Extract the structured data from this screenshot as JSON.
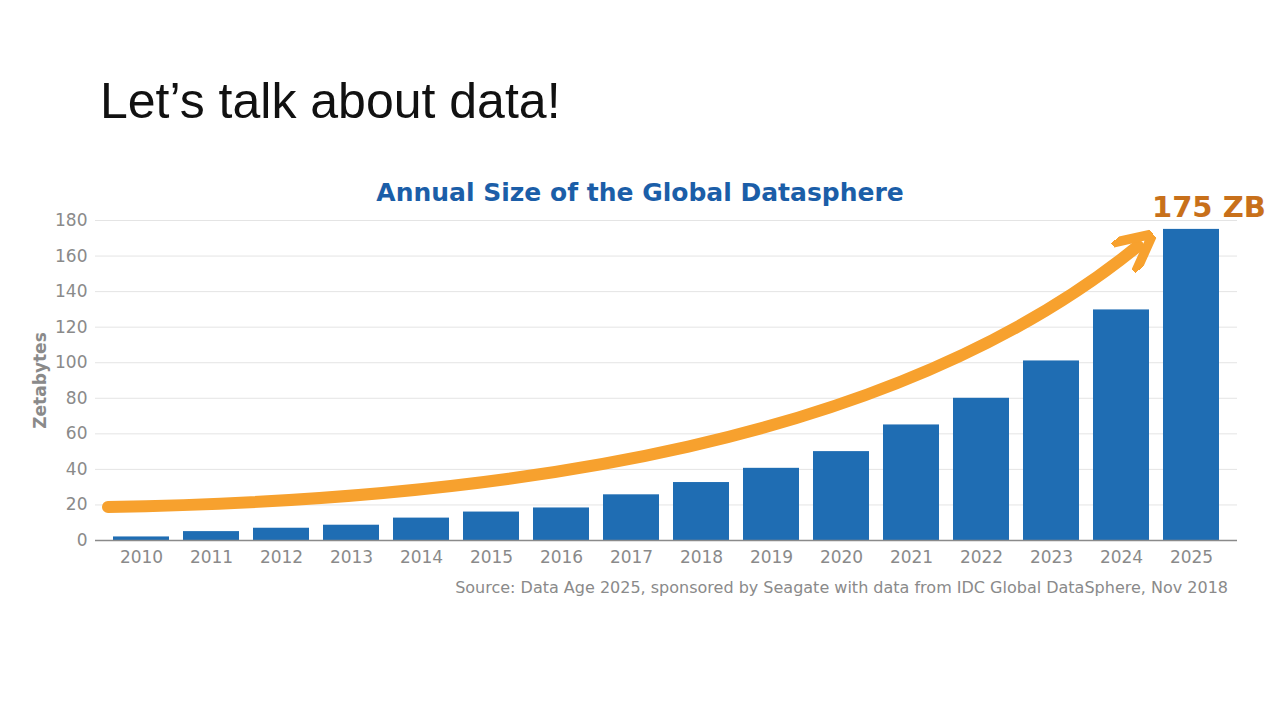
{
  "slide_title": "Let’s talk about data!",
  "chart_data": {
    "type": "bar",
    "title": "Annual Size of the Global Datasphere",
    "y_label": "Zetabytes",
    "categories": [
      "2010",
      "2011",
      "2012",
      "2013",
      "2014",
      "2015",
      "2016",
      "2017",
      "2018",
      "2019",
      "2020",
      "2021",
      "2022",
      "2023",
      "2024",
      "2025"
    ],
    "values": [
      2,
      5,
      6.9,
      8.6,
      12.6,
      16,
      18.3,
      25.7,
      32.6,
      40.6,
      50,
      65,
      80,
      101,
      129.7,
      175
    ],
    "color": "#1f6db3",
    "ylim": [
      0,
      180
    ],
    "yticks": [
      0,
      20,
      40,
      60,
      80,
      100,
      120,
      140,
      160,
      180
    ],
    "grid": true,
    "annotation": "175 ZB",
    "source": "Source: Data Age 2025, sponsored by Seagate with data from IDC Global DataSphere, Nov 2018"
  }
}
